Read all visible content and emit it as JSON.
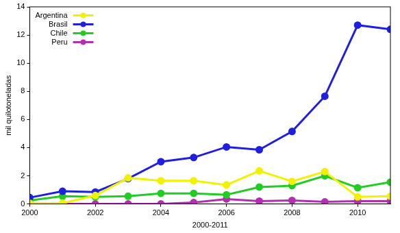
{
  "chart_data": {
    "type": "line",
    "x_label": "2000-2011",
    "y_label": "mil quilotoneladas",
    "x": [
      2000,
      2001,
      2002,
      2003,
      2004,
      2005,
      2006,
      2007,
      2008,
      2009,
      2010,
      2011
    ],
    "series": [
      {
        "name": "Argentina",
        "color": "#f2f200",
        "marker": "circle",
        "values": [
          0.05,
          0.05,
          0.6,
          1.85,
          1.65,
          1.65,
          1.35,
          2.35,
          1.6,
          2.3,
          0.5,
          0.55
        ]
      },
      {
        "name": "Brasil",
        "color": "#1f1fe0",
        "marker": "circle",
        "values": [
          0.45,
          0.9,
          0.85,
          1.8,
          3.0,
          3.3,
          4.05,
          3.85,
          5.15,
          7.65,
          12.7,
          12.4
        ]
      },
      {
        "name": "Chile",
        "color": "#22cc22",
        "marker": "circle",
        "values": [
          0.25,
          0.55,
          0.5,
          0.55,
          0.75,
          0.75,
          0.65,
          1.2,
          1.3,
          2.0,
          1.15,
          1.55
        ]
      },
      {
        "name": "Peru",
        "color": "#b030b0",
        "marker": "circle",
        "values": [
          0.0,
          0.0,
          0.0,
          0.0,
          0.0,
          0.1,
          0.35,
          0.2,
          0.25,
          0.15,
          0.2,
          0.2
        ]
      }
    ],
    "xlim": [
      2000,
      2011
    ],
    "xticks": [
      2000,
      2002,
      2004,
      2006,
      2008,
      2010
    ],
    "ylim": [
      0,
      14
    ],
    "yticks": [
      0,
      2,
      4,
      6,
      8,
      10,
      12,
      14
    ],
    "grid": false,
    "legend": "top-left"
  }
}
